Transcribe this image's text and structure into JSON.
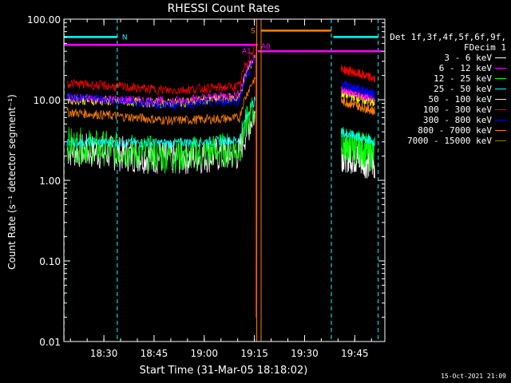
{
  "chart_data": {
    "type": "line",
    "title": "RHESSI Count Rates",
    "xlabel": "Start Time (31-Mar-05 18:18:02)",
    "ylabel": "Count Rate (s⁻¹ detector segment⁻¹)",
    "y_scale": "log",
    "ylim": [
      0.01,
      100
    ],
    "xlim_minutes": [
      18.3,
      19.9
    ],
    "x_ticks": [
      "18:30",
      "18:45",
      "19:00",
      "19:15",
      "19:30",
      "19:45"
    ],
    "y_ticks": [
      "0.01",
      "0.10",
      "1.00",
      "10.00",
      "100.00"
    ],
    "legend_header": [
      "Det 1f,3f,4f,5f,6f,9f,",
      "FDecim 1"
    ],
    "series": [
      {
        "name": "3 - 6 keV",
        "color": "#ffffff",
        "level_start": 2.4,
        "level_mid": 1.9,
        "level_end": 2.2,
        "post": 1.8
      },
      {
        "name": "6 - 12 keV",
        "color": "#ff00ff",
        "level_start": 10.5,
        "level_mid": 9.5,
        "level_end": 12,
        "post": 11
      },
      {
        "name": "12 - 25 keV",
        "color": "#00ff00",
        "level_start": 2.8,
        "level_mid": 2.0,
        "level_end": 2.6,
        "post": 2.4
      },
      {
        "name": "25 - 50 keV",
        "color": "#00ffff",
        "level_start": 3.0,
        "level_mid": 2.9,
        "level_end": 3.2,
        "post": 3.3
      },
      {
        "name": "50 - 100 keV",
        "color": "#ffff00",
        "level_start": 10,
        "level_mid": 9,
        "level_end": 11,
        "post": 10
      },
      {
        "name": "100 - 300 keV",
        "color": "#ff0000",
        "level_start": 16,
        "level_mid": 13,
        "level_end": 15,
        "post": 20
      },
      {
        "name": "300 - 800 keV",
        "color": "#0000ff",
        "level_start": 11,
        "level_mid": 8.5,
        "level_end": 10,
        "post": 13
      },
      {
        "name": "800 - 7000 keV",
        "color": "#ff8000",
        "level_start": 7,
        "level_mid": 5.5,
        "level_end": 6,
        "post": 8
      },
      {
        "name": "7000 - 15000 keV",
        "color": "#808000",
        "level_start": 0,
        "level_mid": 0,
        "level_end": 0,
        "post": 0
      }
    ],
    "flags": [
      {
        "label": "N",
        "color": "#00ffff",
        "y": 60
      },
      {
        "label": "S",
        "color": "#ff8000",
        "y": 72
      },
      {
        "label": "A1",
        "color": "#ff00ff",
        "y": 48
      },
      {
        "label": "A0",
        "color": "#ff00ff",
        "y": 40
      }
    ],
    "footer_date": "15-Oct-2021 21:09"
  }
}
